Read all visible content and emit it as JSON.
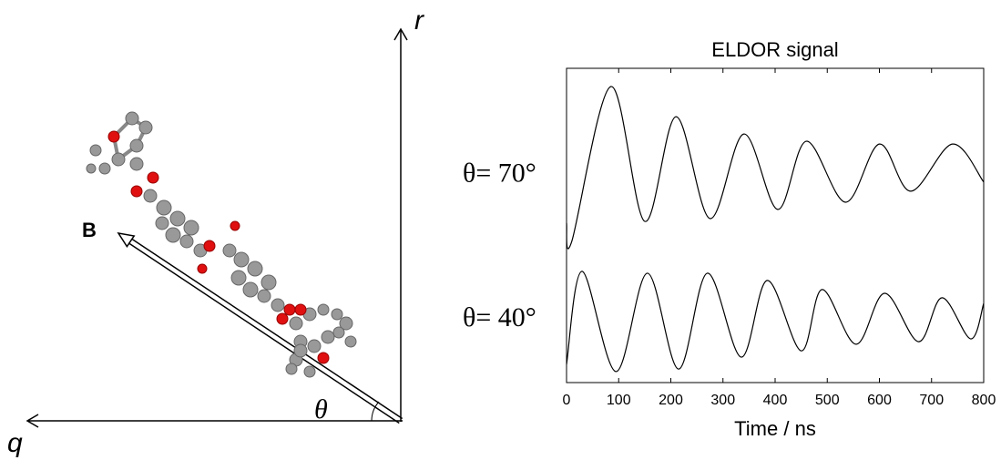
{
  "diagram": {
    "labels": {
      "r": "r",
      "q": "q",
      "B": "B",
      "theta": "θ"
    }
  },
  "chart_data": {
    "type": "line",
    "title": "ELDOR signal",
    "xlabel": "Time / ns",
    "xlim": [
      0,
      800
    ],
    "xticks": [
      0,
      100,
      200,
      300,
      400,
      500,
      600,
      700,
      800
    ],
    "ylim": [
      0,
      100
    ],
    "series": [
      {
        "name": "θ= 70°",
        "color": "#000000",
        "x": [
          0,
          10,
          85,
          150,
          210,
          275,
          340,
          405,
          460,
          535,
          600,
          660,
          740,
          800
        ],
        "values": [
          50.7,
          44.9,
          94.2,
          51.3,
          84.6,
          52.2,
          79.1,
          55.1,
          76.8,
          57.4,
          75.9,
          60.9,
          75.9,
          63.8
        ]
      },
      {
        "name": "θ= 40°",
        "color": "#000000",
        "x": [
          0,
          30,
          95,
          155,
          215,
          270,
          335,
          385,
          450,
          490,
          555,
          610,
          675,
          720,
          775,
          800
        ],
        "values": [
          5.8,
          35.4,
          3.5,
          34.8,
          4.3,
          34.8,
          8.1,
          32.5,
          10.1,
          29.6,
          12.2,
          28.4,
          13.0,
          27.0,
          13.9,
          25.2
        ]
      }
    ]
  }
}
